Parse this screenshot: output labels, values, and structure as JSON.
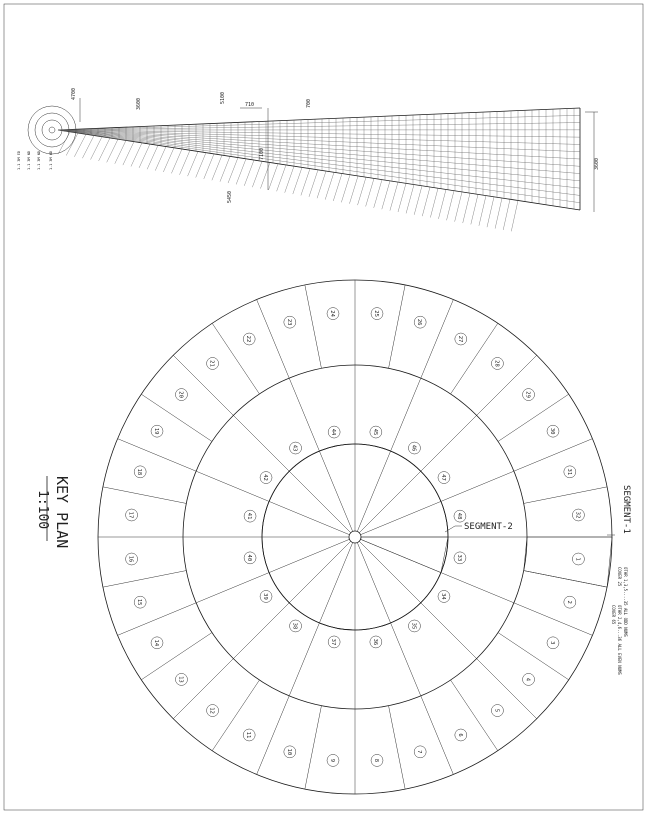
{
  "drawing": {
    "title": "KEY PLAN",
    "scale": "1:100",
    "segment_labels": [
      "SEGMENT-1",
      "SEGMENT-2"
    ],
    "notes": [
      "COVER 25",
      "COVER 65",
      "OTHR 1,3,5....35 ALL ODD NUMS",
      "OTHR 2,4,6...36 ALL EVEN NUMS"
    ],
    "panel_numbers_outer": [
      "1",
      "2",
      "3",
      "4",
      "5",
      "6",
      "7",
      "8",
      "9",
      "10",
      "11",
      "12",
      "13",
      "14",
      "15",
      "16",
      "17",
      "18",
      "19",
      "20",
      "21",
      "22",
      "23",
      "24",
      "25",
      "26",
      "27",
      "28",
      "29",
      "30",
      "31",
      "32"
    ],
    "panel_numbers_inner": [
      "33",
      "34",
      "35",
      "36",
      "37",
      "38",
      "39",
      "40",
      "41",
      "42",
      "43",
      "44",
      "45",
      "46",
      "47",
      "48"
    ],
    "mesh_dimensions": [
      "4700",
      "710",
      "3600",
      "5100",
      "700",
      "7100",
      "3600",
      "5450"
    ],
    "colors": {
      "line": "#1a1a1a",
      "hatch": "#333333",
      "paper": "#ffffff"
    }
  }
}
